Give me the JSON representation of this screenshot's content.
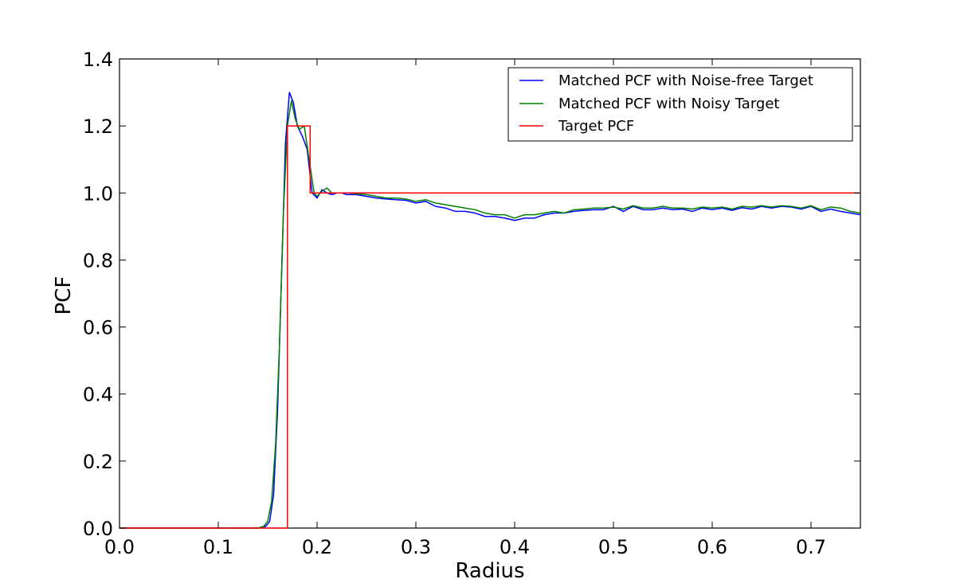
{
  "chart_data": {
    "type": "line",
    "title": "",
    "xlabel": "Radius",
    "ylabel": "PCF",
    "xlim": [
      0.0,
      0.75
    ],
    "ylim": [
      0.0,
      1.4
    ],
    "xticks": [
      "0.0",
      "0.1",
      "0.2",
      "0.3",
      "0.4",
      "0.5",
      "0.6",
      "0.7"
    ],
    "yticks": [
      "0.0",
      "0.2",
      "0.4",
      "0.6",
      "0.8",
      "1.0",
      "1.2",
      "1.4"
    ],
    "grid": false,
    "legend_position": "top-right",
    "series": [
      {
        "name": "Matched PCF with Noise-free Target",
        "color": "#0000ff",
        "x": [
          0.0,
          0.14,
          0.148,
          0.152,
          0.156,
          0.16,
          0.164,
          0.168,
          0.172,
          0.176,
          0.18,
          0.185,
          0.19,
          0.195,
          0.2,
          0.205,
          0.21,
          0.215,
          0.22,
          0.225,
          0.23,
          0.24,
          0.25,
          0.26,
          0.27,
          0.28,
          0.29,
          0.3,
          0.31,
          0.32,
          0.33,
          0.34,
          0.35,
          0.36,
          0.37,
          0.38,
          0.39,
          0.4,
          0.41,
          0.42,
          0.43,
          0.44,
          0.45,
          0.46,
          0.47,
          0.48,
          0.49,
          0.5,
          0.51,
          0.52,
          0.53,
          0.54,
          0.55,
          0.56,
          0.57,
          0.58,
          0.59,
          0.6,
          0.61,
          0.62,
          0.63,
          0.64,
          0.65,
          0.66,
          0.67,
          0.68,
          0.69,
          0.7,
          0.71,
          0.72,
          0.73,
          0.74,
          0.75
        ],
        "y": [
          0.0,
          0.0,
          0.005,
          0.02,
          0.1,
          0.35,
          0.75,
          1.15,
          1.3,
          1.27,
          1.2,
          1.17,
          1.13,
          1.0,
          0.985,
          1.01,
          1.0,
          0.995,
          1.0,
          1.0,
          0.995,
          0.995,
          0.99,
          0.985,
          0.982,
          0.98,
          0.978,
          0.97,
          0.975,
          0.96,
          0.955,
          0.945,
          0.945,
          0.94,
          0.93,
          0.93,
          0.925,
          0.918,
          0.925,
          0.925,
          0.935,
          0.94,
          0.94,
          0.945,
          0.948,
          0.95,
          0.95,
          0.96,
          0.945,
          0.96,
          0.95,
          0.95,
          0.955,
          0.95,
          0.952,
          0.945,
          0.955,
          0.95,
          0.955,
          0.948,
          0.956,
          0.952,
          0.96,
          0.955,
          0.96,
          0.958,
          0.952,
          0.96,
          0.945,
          0.952,
          0.945,
          0.94,
          0.935
        ]
      },
      {
        "name": "Matched PCF with Noisy Target",
        "color": "#008000",
        "x": [
          0.0,
          0.14,
          0.146,
          0.15,
          0.154,
          0.158,
          0.162,
          0.166,
          0.17,
          0.174,
          0.178,
          0.182,
          0.187,
          0.192,
          0.197,
          0.2,
          0.205,
          0.21,
          0.215,
          0.22,
          0.225,
          0.23,
          0.24,
          0.25,
          0.26,
          0.27,
          0.28,
          0.29,
          0.3,
          0.31,
          0.32,
          0.33,
          0.34,
          0.35,
          0.36,
          0.37,
          0.38,
          0.39,
          0.4,
          0.41,
          0.42,
          0.43,
          0.44,
          0.45,
          0.46,
          0.47,
          0.48,
          0.49,
          0.5,
          0.51,
          0.52,
          0.53,
          0.54,
          0.55,
          0.56,
          0.57,
          0.58,
          0.59,
          0.6,
          0.61,
          0.62,
          0.63,
          0.64,
          0.65,
          0.66,
          0.67,
          0.68,
          0.69,
          0.7,
          0.71,
          0.72,
          0.73,
          0.74,
          0.75
        ],
        "y": [
          0.0,
          0.0,
          0.005,
          0.02,
          0.08,
          0.25,
          0.55,
          0.95,
          1.2,
          1.275,
          1.22,
          1.19,
          1.2,
          1.1,
          1.0,
          0.99,
          1.005,
          1.015,
          1.0,
          1.0,
          1.0,
          1.0,
          0.998,
          0.995,
          0.99,
          0.985,
          0.985,
          0.982,
          0.975,
          0.98,
          0.97,
          0.965,
          0.96,
          0.955,
          0.95,
          0.94,
          0.935,
          0.935,
          0.925,
          0.935,
          0.935,
          0.94,
          0.945,
          0.94,
          0.95,
          0.952,
          0.955,
          0.955,
          0.958,
          0.952,
          0.962,
          0.955,
          0.955,
          0.96,
          0.955,
          0.955,
          0.952,
          0.958,
          0.955,
          0.958,
          0.952,
          0.96,
          0.958,
          0.962,
          0.958,
          0.962,
          0.96,
          0.955,
          0.962,
          0.95,
          0.958,
          0.955,
          0.945,
          0.94
        ]
      },
      {
        "name": "Target PCF",
        "color": "#ff0000",
        "x": [
          0.0,
          0.162,
          0.162,
          0.17,
          0.17,
          0.193,
          0.193,
          0.75
        ],
        "y": [
          0.0,
          0.0,
          0.0,
          0.0,
          1.2,
          1.2,
          1.0,
          1.0
        ]
      }
    ]
  }
}
